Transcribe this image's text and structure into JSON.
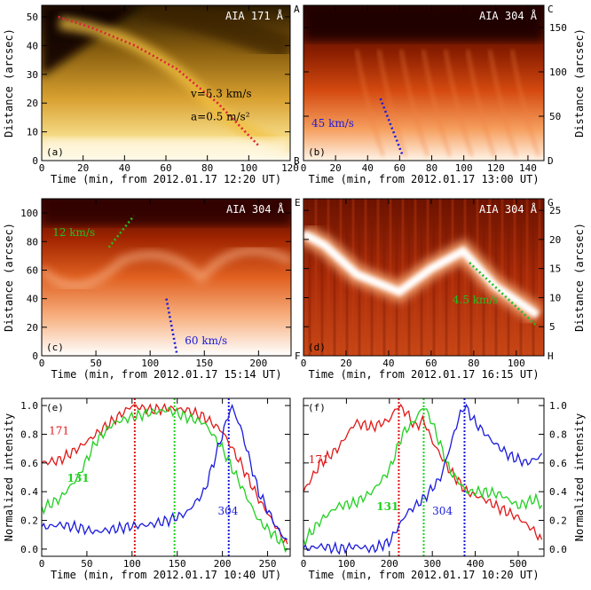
{
  "chart_data": [
    {
      "panel": "a",
      "type": "heatmap",
      "title": "AIA 171 Å",
      "panel_label": "(a)",
      "xlabel": "Time (min, from 2012.01.17  12:20 UT)",
      "ylabel": "Distance (arcsec)",
      "xlim": [
        0,
        120
      ],
      "ylim": [
        0,
        54
      ],
      "xticks": [
        0,
        20,
        40,
        60,
        80,
        100,
        120
      ],
      "yticks": [
        0,
        10,
        20,
        30,
        40,
        50
      ],
      "corner_labels": {
        "top_right": "A",
        "bottom_right": "B"
      },
      "colormap": "sdoaia171",
      "fit": {
        "color": "#e0203a",
        "x": [
          8,
          25,
          45,
          65,
          85,
          105
        ],
        "y": [
          50,
          46,
          40,
          32,
          20,
          5
        ]
      },
      "annotations": [
        "v=5.3 km/s",
        "a=0.5 m/s²"
      ]
    },
    {
      "panel": "b",
      "type": "heatmap",
      "title": "AIA 304 Å",
      "panel_label": "(b)",
      "xlabel": "Time (min, from 2012.01.17  13:00 UT)",
      "ylabel": "Distance (arcsec)",
      "xlim": [
        0,
        150
      ],
      "ylim": [
        0,
        175
      ],
      "xticks": [
        0,
        20,
        40,
        60,
        80,
        100,
        120,
        140
      ],
      "yticks": [
        50,
        100,
        150
      ],
      "corner_labels": {
        "top_right": "C",
        "bottom_right": "D"
      },
      "colormap": "sdoaia304",
      "fit": {
        "color": "#1a1adc",
        "x": [
          48,
          62
        ],
        "y": [
          70,
          5
        ]
      },
      "annotations": [
        "45 km/s"
      ]
    },
    {
      "panel": "c",
      "type": "heatmap",
      "title": "AIA 304 Å",
      "panel_label": "(c)",
      "xlabel": "Time (min, from 2012.01.17  15:14 UT)",
      "ylabel": "Distance (arcsec)",
      "xlim": [
        0,
        230
      ],
      "ylim": [
        0,
        110
      ],
      "xticks": [
        0,
        50,
        100,
        150,
        200
      ],
      "yticks": [
        0,
        20,
        40,
        60,
        80,
        100
      ],
      "corner_labels": {
        "top_right": "E",
        "bottom_right": "F"
      },
      "colormap": "sdoaia304",
      "fits": [
        {
          "color": "#22c022",
          "x": [
            62,
            85
          ],
          "y": [
            76,
            98
          ]
        },
        {
          "color": "#1a1adc",
          "x": [
            115,
            125
          ],
          "y": [
            40,
            0
          ]
        }
      ],
      "annotations": [
        "12 km/s",
        "60 km/s"
      ]
    },
    {
      "panel": "d",
      "type": "heatmap",
      "title": "AIA 304 Å",
      "panel_label": "(d)",
      "xlabel": "Time (min, from 2012.01.17  16:15 UT)",
      "ylabel": "Distance (arcsec)",
      "xlim": [
        0,
        113
      ],
      "ylim": [
        0,
        27
      ],
      "xticks": [
        0,
        20,
        40,
        60,
        80,
        100
      ],
      "yticks": [
        5,
        10,
        15,
        20,
        25
      ],
      "corner_labels": {
        "top_right": "G",
        "bottom_right": "H"
      },
      "colormap": "sdoaia304",
      "fit": {
        "color": "#22c022",
        "x": [
          78,
          110
        ],
        "y": [
          16,
          5
        ]
      },
      "annotations": [
        "4.5 km/s"
      ]
    },
    {
      "panel": "e",
      "type": "line",
      "panel_label": "(e)",
      "xlabel": "Time (min, from 2012.01.17  10:40 UT)",
      "ylabel": "Normalized intensity",
      "xlim": [
        0,
        275
      ],
      "ylim": [
        -0.05,
        1.05
      ],
      "xticks": [
        0,
        50,
        100,
        150,
        200,
        250
      ],
      "yticks": [
        0.0,
        0.2,
        0.4,
        0.6,
        0.8,
        1.0
      ],
      "series": [
        {
          "name": "171",
          "color": "#e01818",
          "x": [
            0,
            20,
            40,
            60,
            80,
            100,
            120,
            140,
            160,
            180,
            200,
            220,
            240,
            260,
            272
          ],
          "y": [
            0.6,
            0.62,
            0.7,
            0.8,
            0.9,
            1.0,
            0.97,
            0.98,
            0.97,
            0.92,
            0.82,
            0.6,
            0.35,
            0.15,
            0.02
          ]
        },
        {
          "name": "131",
          "color": "#20d020",
          "x": [
            0,
            20,
            40,
            60,
            80,
            100,
            120,
            140,
            160,
            180,
            200,
            220,
            240,
            260,
            272
          ],
          "y": [
            0.28,
            0.35,
            0.5,
            0.75,
            0.88,
            0.92,
            0.95,
            0.97,
            0.92,
            0.88,
            0.7,
            0.45,
            0.2,
            0.08,
            0.0
          ]
        },
        {
          "name": "304",
          "color": "#1a1adc",
          "x": [
            0,
            20,
            40,
            60,
            80,
            100,
            120,
            140,
            160,
            180,
            200,
            210,
            220,
            240,
            260,
            272
          ],
          "y": [
            0.15,
            0.17,
            0.15,
            0.12,
            0.14,
            0.16,
            0.17,
            0.2,
            0.25,
            0.4,
            0.8,
            1.0,
            0.85,
            0.4,
            0.15,
            0.05
          ]
        }
      ],
      "vlines": [
        {
          "x": 103,
          "color": "#e01818"
        },
        {
          "x": 147,
          "color": "#20d020"
        },
        {
          "x": 207,
          "color": "#1a1adc"
        }
      ],
      "legend": {
        "171": "171",
        "131": "131",
        "304": "304"
      }
    },
    {
      "panel": "f",
      "type": "line",
      "panel_label": "(f)",
      "xlabel": "Time (min, from 2012.01.17  10:20 UT)",
      "ylabel": "Normalized intensity",
      "xlim": [
        0,
        560
      ],
      "ylim": [
        -0.05,
        1.05
      ],
      "xticks": [
        0,
        100,
        200,
        300,
        400,
        500
      ],
      "yticks": [
        0.0,
        0.2,
        0.4,
        0.6,
        0.8,
        1.0
      ],
      "series": [
        {
          "name": "171",
          "color": "#e01818",
          "x": [
            0,
            40,
            80,
            120,
            160,
            200,
            220,
            240,
            260,
            280,
            300,
            340,
            380,
            420,
            460,
            500,
            540,
            555
          ],
          "y": [
            0.4,
            0.6,
            0.7,
            0.88,
            0.85,
            0.9,
            1.0,
            0.95,
            0.85,
            0.9,
            0.75,
            0.55,
            0.4,
            0.35,
            0.28,
            0.22,
            0.12,
            0.05
          ]
        },
        {
          "name": "131",
          "color": "#20d020",
          "x": [
            0,
            40,
            80,
            120,
            160,
            200,
            230,
            260,
            280,
            300,
            340,
            380,
            420,
            460,
            500,
            540,
            555
          ],
          "y": [
            0.05,
            0.2,
            0.3,
            0.32,
            0.4,
            0.55,
            0.8,
            0.9,
            1.0,
            0.88,
            0.55,
            0.4,
            0.4,
            0.38,
            0.3,
            0.35,
            0.3
          ]
        },
        {
          "name": "304",
          "color": "#1a1adc",
          "x": [
            0,
            40,
            80,
            120,
            160,
            200,
            240,
            280,
            320,
            360,
            375,
            400,
            440,
            480,
            520,
            555
          ],
          "y": [
            0.0,
            0.02,
            0.0,
            0.02,
            0.0,
            0.05,
            0.25,
            0.35,
            0.5,
            0.9,
            1.0,
            0.88,
            0.75,
            0.65,
            0.6,
            0.65
          ]
        }
      ],
      "vlines": [
        {
          "x": 222,
          "color": "#e01818"
        },
        {
          "x": 280,
          "color": "#20d020"
        },
        {
          "x": 375,
          "color": "#1a1adc"
        }
      ],
      "legend": {
        "171": "171",
        "131": "131",
        "304": "304"
      }
    }
  ]
}
